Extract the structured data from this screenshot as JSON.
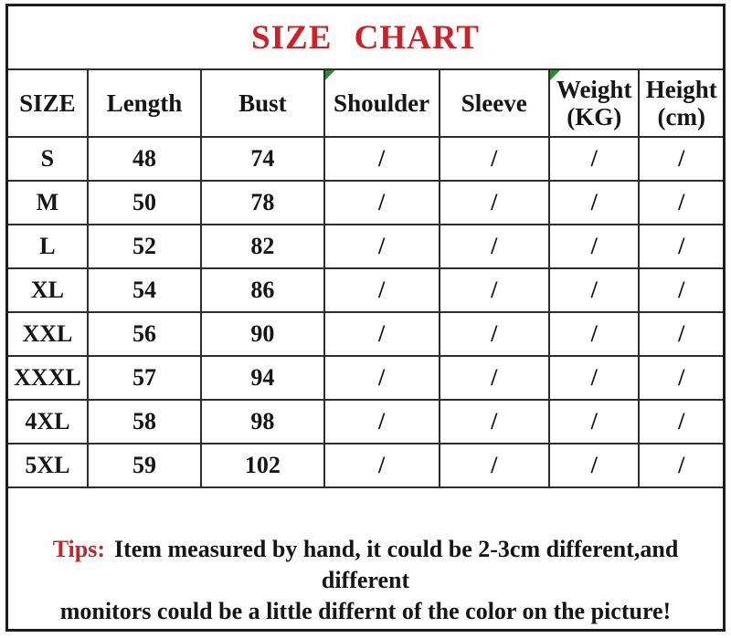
{
  "title": "SIZE CHART",
  "size_table": {
    "headers": [
      {
        "label": "SIZE"
      },
      {
        "label": "Length"
      },
      {
        "label": "Bust"
      },
      {
        "label": "Shoulder",
        "flagged": true
      },
      {
        "label": "Sleeve"
      },
      {
        "label": "Weight",
        "sub": "(KG)",
        "flagged": true
      },
      {
        "label": "Height",
        "sub": "(cm)"
      }
    ],
    "rows": [
      [
        "S",
        "48",
        "74",
        "/",
        "/",
        "/",
        "/"
      ],
      [
        "M",
        "50",
        "78",
        "/",
        "/",
        "/",
        "/"
      ],
      [
        "L",
        "52",
        "82",
        "/",
        "/",
        "/",
        "/"
      ],
      [
        "XL",
        "54",
        "86",
        "/",
        "/",
        "/",
        "/"
      ],
      [
        "XXL",
        "56",
        "90",
        "/",
        "/",
        "/",
        "/"
      ],
      [
        "XXXL",
        "57",
        "94",
        "/",
        "/",
        "/",
        "/"
      ],
      [
        "4XL",
        "58",
        "98",
        "/",
        "/",
        "/",
        "/"
      ],
      [
        "5XL",
        "59",
        "102",
        "/",
        "/",
        "/",
        "/"
      ]
    ]
  },
  "tips": {
    "label": "Tips:",
    "line1": "Item measured by hand, it could be 2-3cm different,and different",
    "line2": "monitors could be a little differnt of the color on the picture!"
  },
  "colors": {
    "title_red": "#cc2127",
    "tips_red": "#c0272d",
    "text": "#161616",
    "grid": "#2d2d2d",
    "marker_green": "#2e8b2e"
  }
}
